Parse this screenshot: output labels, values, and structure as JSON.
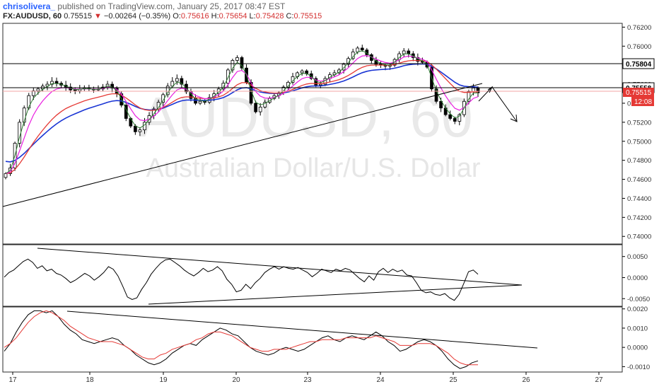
{
  "header": {
    "author": "chrisolivera_",
    "published_text": "published on TradingView.com, January 25, 2017 08:47 EST",
    "symbol": "FX:AUDUSD, 60",
    "last": "0.75515",
    "change_arrow": "▼",
    "change": "−0.00264 (−0.35%)",
    "o_label": "O:",
    "o_value": "0.75616",
    "h_label": "H:",
    "h_value": "0.75654",
    "l_label": "L:",
    "l_value": "0.75428",
    "c_label": "C:",
    "c_value": "0.75515"
  },
  "watermark": {
    "symbol": "AUDUSD, 60",
    "description": "Australian Dollar/U.S. Dollar"
  },
  "colors": {
    "up_candle": "#ffffff",
    "candle_outline": "#000000",
    "sma_fast": "#2e7d32",
    "ema_magenta": "#e91ee0",
    "ema_red": "#e53935",
    "ma_blue": "#1a35d4",
    "price_tag_red": "#e53935"
  },
  "price_axis_badges": {
    "level_upper": "0.75804",
    "level_lower": "0.75558",
    "last_price": "0.75515",
    "countdown": "12:08"
  },
  "chart_data": [
    {
      "type": "line",
      "title": "FX:AUDUSD, 60",
      "x_ticks": [
        "17",
        "18",
        "19",
        "20",
        "23",
        "24",
        "25",
        "26",
        "27"
      ],
      "y_ticks": [
        "0.76200",
        "0.76000",
        "0.75800",
        "0.75600",
        "0.75400",
        "0.75200",
        "0.75000",
        "0.74800",
        "0.74600",
        "0.74400",
        "0.74200",
        "0.74000"
      ],
      "ylim": [
        0.7392,
        0.7624
      ],
      "series": [
        {
          "values": [
            0.7466,
            0.7472,
            0.7498,
            0.752,
            0.7535,
            0.7548,
            0.7553,
            0.7555,
            0.7558,
            0.756,
            0.7563,
            0.7561,
            0.7559,
            0.7557,
            0.7554,
            0.7553,
            0.7555,
            0.7556,
            0.7555,
            0.7554,
            0.7555,
            0.7557,
            0.756,
            0.7556,
            0.755,
            0.7538,
            0.7524,
            0.7516,
            0.751,
            0.7512,
            0.752,
            0.7527,
            0.7534,
            0.7541,
            0.7549,
            0.7558,
            0.7563,
            0.7566,
            0.756,
            0.7552,
            0.7545,
            0.754,
            0.7542,
            0.7541,
            0.7546,
            0.755,
            0.7555,
            0.7561,
            0.7575,
            0.7585,
            0.7588,
            0.7577,
            0.7562,
            0.754,
            0.7531,
            0.7536,
            0.7541,
            0.7545,
            0.7548,
            0.7551,
            0.7557,
            0.7562,
            0.7568,
            0.7572,
            0.7574,
            0.7571,
            0.7566,
            0.7559,
            0.756,
            0.7566,
            0.757,
            0.7572,
            0.7575,
            0.7581,
            0.7587,
            0.7594,
            0.7598,
            0.7596,
            0.7591,
            0.7585,
            0.7581,
            0.758,
            0.7579,
            0.758,
            0.7586,
            0.7592,
            0.7595,
            0.7592,
            0.7588,
            0.7584,
            0.7583,
            0.7578,
            0.7555,
            0.7542,
            0.7535,
            0.7528,
            0.7524,
            0.7521,
            0.7528,
            0.7542,
            0.7552,
            0.7556,
            0.7551
          ]
        }
      ]
    },
    {
      "type": "line",
      "title": "",
      "y_ticks": [
        "0.0050",
        "0.0000",
        "-0.0050"
      ],
      "ylim": [
        -0.0068,
        0.0078
      ],
      "series": [
        {
          "values": [
            0.0001,
            0.0012,
            0.0018,
            0.0028,
            0.0038,
            0.0044,
            0.0036,
            0.0022,
            0.0028,
            0.0016,
            0.002,
            0.001,
            0.0006,
            -0.0002,
            -0.0012,
            -0.0006,
            0.0002,
            0.001,
            0.0004,
            -0.0006,
            0.0002,
            0.0012,
            0.0026,
            0.002,
            0.0004,
            -0.002,
            -0.0046,
            -0.0052,
            -0.0048,
            -0.0028,
            -0.0012,
            0.0008,
            0.0022,
            0.0034,
            0.0042,
            0.0044,
            0.0036,
            0.0028,
            0.0018,
            0.001,
            0.0004,
            0.0012,
            0.0022,
            0.0014,
            0.0018,
            0.0026,
            0.0016,
            -0.0004,
            -0.0016,
            -0.0034,
            -0.003,
            -0.0016,
            -0.0026,
            -0.0012,
            -0.0002,
            0.0012,
            0.002,
            0.0026,
            0.002,
            0.0026,
            0.0022,
            0.002,
            0.0024,
            0.0018,
            0.0012,
            0.0002,
            0.001,
            0.002,
            0.0016,
            0.0012,
            0.002,
            0.0016,
            0.0022,
            0.0018,
            0.0008,
            -0.0002,
            -0.001,
            0.0004,
            -0.0006,
            0.0014,
            0.0022,
            0.0012,
            0.002,
            0.0014,
            0.0018,
            0.0006,
            0.0004,
            -0.0012,
            -0.003,
            -0.0036,
            -0.0034,
            -0.004,
            -0.0042,
            -0.0038,
            -0.0048,
            -0.0054,
            -0.004,
            -0.0014,
            0.0014,
            0.0018,
            0.0008
          ]
        }
      ]
    },
    {
      "type": "line",
      "title": "",
      "y_ticks": [
        "0.0020",
        "0.0010",
        "0.0000",
        "-0.0010"
      ],
      "ylim": [
        -0.00128,
        0.0021
      ],
      "series": [
        {
          "values": [
            -0.0002,
            0.0002,
            0.0008,
            0.0013,
            0.0017,
            0.0019,
            0.0019,
            0.0018,
            0.0019,
            0.0016,
            0.0012,
            0.0009,
            0.0007,
            0.0004,
            0.0003,
            0.0002,
            0.0003,
            0.0004,
            0.0005,
            0.0004,
            0.0001,
            -0.0001,
            -0.0004,
            -0.0006,
            -0.0008,
            -0.0009,
            -0.0008,
            -0.0006,
            -0.0003,
            -0.0001,
            0.0001,
            0.0002,
            0.0001,
            0.0004,
            0.0006,
            0.0008,
            0.001,
            0.0009,
            0.0007,
            0.0006,
            0.0003,
            0.0,
            -0.0002,
            -0.0003,
            -0.0004,
            -0.0003,
            -0.0001,
            0.0,
            -0.0001,
            -0.0002,
            -0.0001,
            0.0001,
            0.0003,
            0.0005,
            0.0006,
            0.0004,
            0.0003,
            0.0005,
            0.0006,
            0.0005,
            0.0004,
            0.0006,
            0.0008,
            0.0006,
            0.0003,
            0.0001,
            -0.0002,
            -0.0001,
            0.0001,
            0.0003,
            0.0004,
            0.0003,
            0.0001,
            -0.0002,
            -0.0006,
            -0.0009,
            -0.0011,
            -0.001,
            -0.0008,
            -0.0007
          ]
        },
        {
          "values": [
            0.0,
            0.0002,
            0.0005,
            0.0009,
            0.0013,
            0.0016,
            0.0018,
            0.0019,
            0.0018,
            0.0016,
            0.0014,
            0.0011,
            0.0009,
            0.0007,
            0.0005,
            0.0004,
            0.0003,
            0.0003,
            0.0003,
            0.0002,
            0.0001,
            -0.0001,
            -0.0003,
            -0.0005,
            -0.0006,
            -0.0006,
            -0.0004,
            -0.0003,
            -0.0001,
            0.0,
            0.0001,
            0.0002,
            0.0004,
            0.0005,
            0.0007,
            0.0008,
            0.0008,
            0.0007,
            0.0006,
            0.0004,
            0.0002,
            0.0,
            -0.0001,
            -0.0002,
            -0.0002,
            -0.0001,
            -0.0001,
            -0.0001,
            0.0,
            0.0001,
            0.0002,
            0.0003,
            0.0003,
            0.0004,
            0.0004,
            0.0004,
            0.0004,
            0.0005,
            0.0005,
            0.0005,
            0.0005,
            0.0005,
            0.0006,
            0.0005,
            0.0004,
            0.0003,
            0.0001,
            0.0001,
            0.0001,
            0.0002,
            0.0002,
            0.0002,
            0.0001,
            -0.0001,
            -0.0003,
            -0.0006,
            -0.0008,
            -0.0009,
            -0.0009,
            -0.0009
          ]
        }
      ]
    }
  ]
}
